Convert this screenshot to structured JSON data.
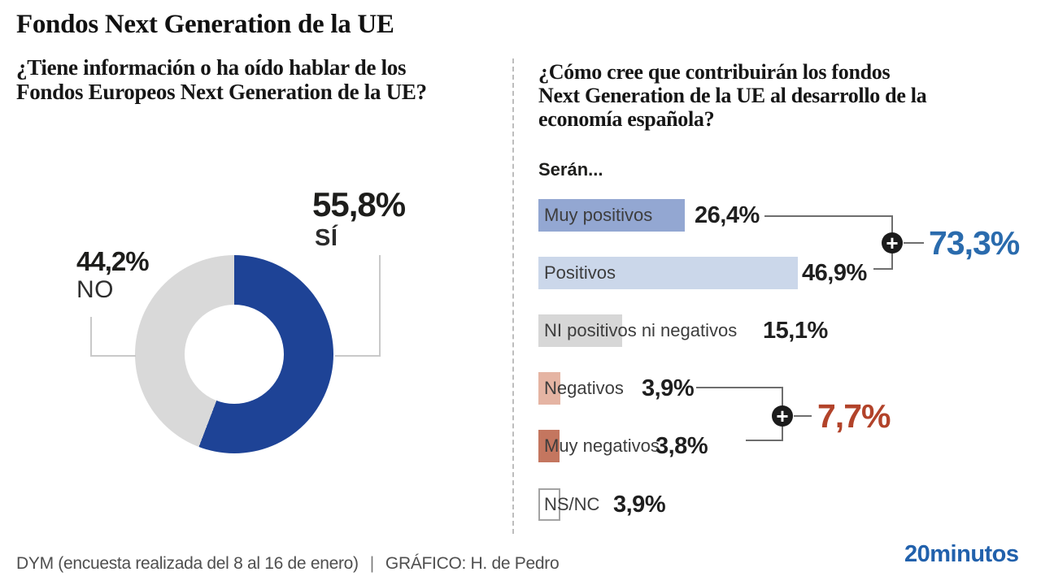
{
  "title": "Fondos Next Generation de la UE",
  "left_chart": {
    "question_lines": [
      "¿Tiene información o ha oído hablar de los",
      "Fondos Europeos Next Generation de la UE?"
    ],
    "segments": [
      {
        "label": "SÍ",
        "value_text": "55,8%",
        "pct": 55.8,
        "color": "#1e4396"
      },
      {
        "label": "NO",
        "value_text": "44,2%",
        "pct": 44.2,
        "color": "#d9d9d9"
      }
    ]
  },
  "right_chart": {
    "question_lines": [
      "¿Cómo cree que contribuirán los fondos",
      "Next Generation de la UE al desarrollo de la",
      "economía española?"
    ],
    "intro": "Serán...",
    "bars": [
      {
        "label": "Muy positivos",
        "value_text": "26,4%",
        "pct": 26.4,
        "color": "#93a7d2"
      },
      {
        "label": "Positivos",
        "value_text": "46,9%",
        "pct": 46.9,
        "color": "#cbd7ea"
      },
      {
        "label": "NI positivos ni negativos",
        "value_text": "15,1%",
        "pct": 15.1,
        "color": "#d7d7d7"
      },
      {
        "label": "Negativos",
        "value_text": "3,9%",
        "pct": 3.9,
        "color": "#e5b4a3"
      },
      {
        "label": "Muy negativos",
        "value_text": "3,8%",
        "pct": 3.8,
        "color": "#c4765f"
      },
      {
        "label": "NS/NC",
        "value_text": "3,9%",
        "pct": 3.9,
        "color": "#ffffff",
        "border": "#a3a3a3"
      }
    ],
    "aggregates": [
      {
        "value_text": "73,3%",
        "pct": 73.3,
        "color": "#2a6bad"
      },
      {
        "value_text": "7,7%",
        "pct": 7.7,
        "color": "#b2432a"
      }
    ]
  },
  "footer": {
    "source": "DYM (encuesta realizada del 8 al 16 de enero)",
    "separator": "|",
    "credit": "GRÁFICO: H. de Pedro",
    "logo": "20minutos",
    "logo_color": "#2161ac"
  },
  "chart_data": [
    {
      "type": "pie",
      "donut": true,
      "title": "¿Tiene información o ha oído hablar de los Fondos Europeos Next Generation de la UE?",
      "labels": [
        "SÍ",
        "NO"
      ],
      "values": [
        55.8,
        44.2
      ],
      "colors": [
        "#1e4396",
        "#d9d9d9"
      ],
      "start_angle_deg": 0,
      "direction": "clockwise"
    },
    {
      "type": "bar",
      "orientation": "horizontal",
      "title": "¿Cómo cree que contribuirán los fondos Next Generation de la UE al desarrollo de la economía española?",
      "subtitle": "Serán...",
      "categories": [
        "Muy positivos",
        "Positivos",
        "NI positivos ni negativos",
        "Negativos",
        "Muy negativos",
        "NS/NC"
      ],
      "values": [
        26.4,
        46.9,
        15.1,
        3.9,
        3.8,
        3.9
      ],
      "colors": [
        "#93a7d2",
        "#cbd7ea",
        "#d7d7d7",
        "#e5b4a3",
        "#c4765f",
        "#ffffff"
      ],
      "xlim": [
        0,
        50
      ],
      "grid": false,
      "legend": false,
      "aggregates": [
        {
          "label": "Muy positivos + Positivos",
          "value": 73.3,
          "color": "#2a6bad"
        },
        {
          "label": "Negativos + Muy negativos",
          "value": 7.7,
          "color": "#b2432a"
        }
      ]
    }
  ]
}
